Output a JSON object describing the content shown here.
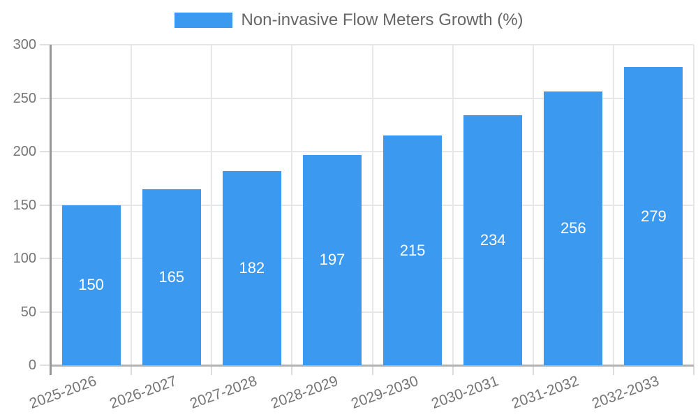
{
  "chart_data": {
    "type": "bar",
    "title": "Non-invasive Flow Meters Growth (%)",
    "categories": [
      "2025-2026",
      "2026-2027",
      "2027-2028",
      "2028-2029",
      "2029-2030",
      "2030-2031",
      "2031-2032",
      "2032-2033"
    ],
    "values": [
      150,
      165,
      182,
      197,
      215,
      234,
      256,
      279
    ],
    "xlabel": "",
    "ylabel": "",
    "ylim": [
      0,
      300
    ],
    "yticks": [
      0,
      50,
      100,
      150,
      200,
      250,
      300
    ],
    "grid": true,
    "legend_position": "top",
    "bar_color": "#3C99F0",
    "value_label_color": "#FFFFFF",
    "tick_label_color": "#757575",
    "legend_text_color": "#666666",
    "gridline_color": "#E7E7E7"
  }
}
